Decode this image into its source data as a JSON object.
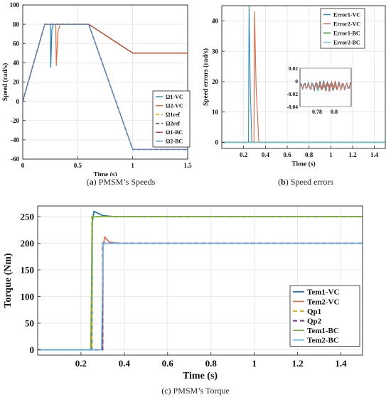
{
  "captions": {
    "a": {
      "letter": "a",
      "text": "PMSM’s Speeds"
    },
    "b": {
      "letter": "b",
      "text": "Speed errors"
    },
    "c": {
      "letter": "c",
      "text": "PMSM’s Torque"
    }
  },
  "chart_data": [
    {
      "id": "speeds",
      "type": "line",
      "title": "",
      "xlabel": "Time (s)",
      "ylabel": "Speed (rad/s)",
      "xlim": [
        0,
        1.5
      ],
      "ylim": [
        -60,
        100
      ],
      "xticks": [
        0,
        0.5,
        1,
        1.5
      ],
      "xtick_labels": [
        "0",
        "0.5",
        "1",
        "1.5"
      ],
      "yticks": [
        -60,
        -40,
        -20,
        0,
        20,
        40,
        60,
        80,
        100
      ],
      "ytick_labels": [
        "-60",
        "-40",
        "-20",
        "0",
        "20",
        "40",
        "60",
        "80",
        "100"
      ],
      "grid": true,
      "legend_position": "bottom-right",
      "series": [
        {
          "name": "Ω1-VC",
          "color": "#1f77b4",
          "dash": "",
          "width": 1.2,
          "x": [
            0,
            0.2,
            0.25,
            0.255,
            0.265,
            0.28,
            0.6,
            1,
            1.5
          ],
          "y": [
            0,
            80,
            80,
            35,
            75,
            80,
            80,
            50,
            50
          ]
        },
        {
          "name": "Ω2-VC",
          "color": "#e8643c",
          "dash": "",
          "width": 1.2,
          "x": [
            0,
            0.2,
            0.3,
            0.305,
            0.32,
            0.34,
            0.6,
            1,
            1.5
          ],
          "y": [
            0,
            80,
            80,
            37,
            72,
            80,
            80,
            -50,
            -50
          ]
        },
        {
          "name": "Ω1ref",
          "color": "#f5b000",
          "dash": "5,3",
          "width": 1.6,
          "x": [
            0,
            0.2,
            0.6,
            1,
            1.5
          ],
          "y": [
            0,
            80,
            80,
            50,
            50
          ]
        },
        {
          "name": "Ω2ref",
          "color": "#7b2f8e",
          "dash": "5,3",
          "width": 1.6,
          "x": [
            0,
            0.2,
            0.6,
            1,
            1.5
          ],
          "y": [
            0,
            80,
            80,
            -50,
            -50
          ]
        },
        {
          "name": "Ω1-BC",
          "color": "#c0392b",
          "dash": "",
          "width": 1.2,
          "x": [
            0,
            0.2,
            0.6,
            1,
            1.5
          ],
          "y": [
            0,
            80,
            80,
            50,
            50
          ]
        },
        {
          "name": "Ω2-BC",
          "color": "#4a90d9",
          "dash": "",
          "width": 1.2,
          "x": [
            0,
            0.2,
            0.6,
            1,
            1.5
          ],
          "y": [
            0,
            80,
            80,
            -50,
            -50
          ]
        }
      ]
    },
    {
      "id": "errors",
      "type": "line",
      "title": "",
      "xlabel": "Time (s)",
      "ylabel": "Speed errors (rad/s)",
      "xlim": [
        0,
        1.5
      ],
      "ylim": [
        -2,
        45
      ],
      "xticks": [
        0.2,
        0.4,
        0.6,
        0.8,
        1,
        1.2,
        1.4
      ],
      "xtick_labels": [
        "0.2",
        "0.4",
        "0.6",
        "0.8",
        "1",
        "1.2",
        "1.4"
      ],
      "yticks": [
        0,
        10,
        20,
        30,
        40
      ],
      "ytick_labels": [
        "0",
        "10",
        "20",
        "30",
        "40"
      ],
      "grid": true,
      "legend_position": "top-right",
      "series": [
        {
          "name": "Error1-VC",
          "color": "#2b8fc7",
          "dash": "",
          "width": 1.1,
          "x": [
            0,
            0.245,
            0.25,
            0.26,
            0.275,
            1.5
          ],
          "y": [
            0,
            0,
            45,
            20,
            0,
            0
          ]
        },
        {
          "name": "Error2-VC",
          "color": "#e8643c",
          "dash": "",
          "width": 1.1,
          "x": [
            0,
            0.295,
            0.3,
            0.315,
            0.34,
            1.5
          ],
          "y": [
            0,
            0,
            43,
            18,
            0,
            0
          ]
        },
        {
          "name": "Error1-BC",
          "color": "#3a8f3a",
          "dash": "",
          "width": 1.6,
          "x": [
            0,
            1.5
          ],
          "y": [
            0,
            0
          ]
        },
        {
          "name": "Error2-BC",
          "color": "#6dc3e8",
          "dash": "",
          "width": 1.1,
          "x": [
            0,
            1.5
          ],
          "y": [
            0,
            0
          ]
        }
      ],
      "inset": {
        "xlim": [
          0.76,
          0.82
        ],
        "ylim": [
          -0.04,
          0.02
        ],
        "xticks": [
          0.78,
          0.8
        ],
        "xtick_labels": [
          "0.78",
          "0.8"
        ],
        "yticks": [
          0.02,
          0,
          -0.02,
          -0.04
        ],
        "ytick_labels": [
          "0.02",
          "0",
          "-0.02",
          "-0.04"
        ]
      }
    },
    {
      "id": "torque",
      "type": "line",
      "title": "",
      "xlabel": "Time (s)",
      "ylabel": "Torque (Nm)",
      "xlim": [
        0,
        1.5
      ],
      "ylim": [
        -10,
        270
      ],
      "xticks": [
        0.2,
        0.4,
        0.6,
        0.8,
        1,
        1.2,
        1.4
      ],
      "xtick_labels": [
        "0.2",
        "0.4",
        "0.6",
        "0.8",
        "1",
        "1.2",
        "1.4"
      ],
      "yticks": [
        0,
        50,
        100,
        150,
        200,
        250
      ],
      "ytick_labels": [
        "0",
        "50",
        "100",
        "150",
        "200",
        "250"
      ],
      "grid": true,
      "legend_position": "bottom-right",
      "series": [
        {
          "name": "Tem1-VC",
          "color": "#1f6fb2",
          "dash": "",
          "width": 1.8,
          "x": [
            0,
            0.25,
            0.252,
            0.26,
            0.3,
            0.35,
            1.5
          ],
          "y": [
            0,
            0,
            240,
            260,
            252,
            250,
            250
          ]
        },
        {
          "name": "Tem2-VC",
          "color": "#e8643c",
          "dash": "",
          "width": 1.6,
          "x": [
            0,
            0.3,
            0.302,
            0.31,
            0.33,
            0.38,
            1.5
          ],
          "y": [
            0,
            0,
            195,
            212,
            202,
            200,
            200
          ]
        },
        {
          "name": "Qp1",
          "color": "#f5b000",
          "dash": "6,4",
          "width": 2,
          "x": [
            0,
            0.25,
            0.25,
            1.5
          ],
          "y": [
            0,
            0,
            250,
            250
          ]
        },
        {
          "name": "Qp2",
          "color": "#7b2f8e",
          "dash": "6,4",
          "width": 2,
          "x": [
            0,
            0.3,
            0.3,
            1.5
          ],
          "y": [
            0,
            0,
            200,
            200
          ]
        },
        {
          "name": "Tem1-BC",
          "color": "#6ab43c",
          "dash": "",
          "width": 1.6,
          "x": [
            0,
            0.245,
            0.252,
            1.5
          ],
          "y": [
            0,
            0,
            250,
            250
          ]
        },
        {
          "name": "Tem2-BC",
          "color": "#5ab9ea",
          "dash": "",
          "width": 1.6,
          "x": [
            0,
            0.295,
            0.302,
            1.5
          ],
          "y": [
            0,
            0,
            200,
            200
          ]
        }
      ]
    }
  ]
}
